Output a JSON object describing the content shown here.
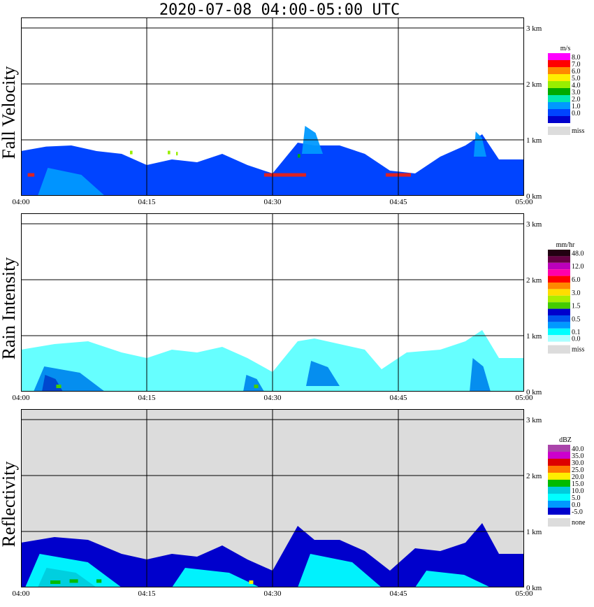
{
  "title": "2020-07-08   04:00-05:00 UTC",
  "colors": {
    "missing": "#dcdcdc",
    "grid": "#000000"
  },
  "chart_data": [
    {
      "type": "heatmap",
      "panel": "Fall Velocity",
      "xlabel": "",
      "ylabel": "Fall Velocity",
      "x_ticks": [
        "04:00",
        "04:15",
        "04:30",
        "04:45",
        "05:00"
      ],
      "y_ticks": [
        "0 km",
        "1 km",
        "2 km",
        "3 km"
      ],
      "xlim": [
        "04:00",
        "05:00"
      ],
      "ylim_km": [
        0,
        3
      ],
      "background": "#ffffff",
      "legend_unit": "m/s",
      "legend": [
        {
          "label": "8.0",
          "color": "#ff00ff"
        },
        {
          "label": "7.0",
          "color": "#ff0000"
        },
        {
          "label": "6.0",
          "color": "#ff8800"
        },
        {
          "label": "5.0",
          "color": "#ffee00"
        },
        {
          "label": "4.0",
          "color": "#99ee00"
        },
        {
          "label": "3.0",
          "color": "#00aa00"
        },
        {
          "label": "2.0",
          "color": "#00e8b0"
        },
        {
          "label": "1.0",
          "color": "#0099ff"
        },
        {
          "label": "0.0",
          "color": "#0044ff"
        }
      ],
      "legend_bottom_color": "#0000cc",
      "missing_label": "miss",
      "echo_tops": [
        {
          "t": 0,
          "h": 0.8
        },
        {
          "t": 3,
          "h": 0.88
        },
        {
          "t": 6,
          "h": 0.9
        },
        {
          "t": 9,
          "h": 0.8
        },
        {
          "t": 12,
          "h": 0.75
        },
        {
          "t": 15,
          "h": 0.55
        },
        {
          "t": 18,
          "h": 0.65
        },
        {
          "t": 21,
          "h": 0.6
        },
        {
          "t": 24,
          "h": 0.75
        },
        {
          "t": 27,
          "h": 0.55
        },
        {
          "t": 30,
          "h": 0.4
        },
        {
          "t": 33,
          "h": 0.95
        },
        {
          "t": 35,
          "h": 0.9
        },
        {
          "t": 38,
          "h": 0.9
        },
        {
          "t": 41,
          "h": 0.75
        },
        {
          "t": 44,
          "h": 0.45
        },
        {
          "t": 47,
          "h": 0.4
        },
        {
          "t": 50,
          "h": 0.7
        },
        {
          "t": 53,
          "h": 0.9
        },
        {
          "t": 55,
          "h": 1.1
        },
        {
          "t": 57,
          "h": 0.65
        },
        {
          "t": 60,
          "h": 0.65
        }
      ],
      "intense_cores": [
        {
          "t0": 2.0,
          "t1": 10.0,
          "h0": 0.0,
          "h1": 0.5,
          "color": "#0099ff"
        },
        {
          "t0": 33.5,
          "t1": 36.0,
          "h0": 0.75,
          "h1": 1.25,
          "color": "#0099ff"
        },
        {
          "t0": 54.0,
          "t1": 55.5,
          "h0": 0.7,
          "h1": 1.15,
          "color": "#0099ff"
        }
      ],
      "spots": [
        {
          "t": 29.0,
          "h": 0.38,
          "w": 5.0,
          "color": "#dd2222"
        },
        {
          "t": 43.5,
          "h": 0.38,
          "w": 3.0,
          "color": "#dd2222"
        },
        {
          "t": 0.8,
          "h": 0.38,
          "w": 0.8,
          "color": "#dd2222"
        },
        {
          "t": 13.0,
          "h": 0.78,
          "w": 0.3,
          "color": "#99ee00"
        },
        {
          "t": 17.5,
          "h": 0.78,
          "w": 0.3,
          "color": "#99ee00"
        },
        {
          "t": 18.5,
          "h": 0.76,
          "w": 0.2,
          "color": "#99ee00"
        },
        {
          "t": 33.0,
          "h": 0.72,
          "w": 0.3,
          "color": "#00aa00"
        }
      ]
    },
    {
      "type": "heatmap",
      "panel": "Rain Intensity",
      "xlabel": "",
      "ylabel": "Rain Intensity",
      "x_ticks": [
        "04:00",
        "04:15",
        "04:30",
        "04:45",
        "05:00"
      ],
      "y_ticks": [
        "0 km",
        "1 km",
        "2 km",
        "3 km"
      ],
      "xlim": [
        "04:00",
        "05:00"
      ],
      "ylim_km": [
        0,
        3
      ],
      "background": "#ffffff",
      "legend_unit": "mm/hr",
      "legend": [
        {
          "label": "48.0",
          "color": "#220011"
        },
        {
          "label": "",
          "color": "#660044"
        },
        {
          "label": "12.0",
          "color": "#bb00bb"
        },
        {
          "label": "",
          "color": "#ff00aa"
        },
        {
          "label": "6.0",
          "color": "#ff0000"
        },
        {
          "label": "",
          "color": "#ff8800"
        },
        {
          "label": "3.0",
          "color": "#ffdd00"
        },
        {
          "label": "",
          "color": "#aaee00"
        },
        {
          "label": "1.5",
          "color": "#44cc00"
        },
        {
          "label": "",
          "color": "#0000cc"
        },
        {
          "label": "0.5",
          "color": "#0055ee"
        },
        {
          "label": "",
          "color": "#0099ff"
        },
        {
          "label": "0.1",
          "color": "#00ffff"
        },
        {
          "label": "0.0",
          "color": "#aaffff"
        }
      ],
      "legend_bottom_color": "",
      "missing_label": "miss",
      "echo_tops": [
        {
          "t": 0,
          "h": 0.75
        },
        {
          "t": 4,
          "h": 0.85
        },
        {
          "t": 8,
          "h": 0.9
        },
        {
          "t": 12,
          "h": 0.7
        },
        {
          "t": 15,
          "h": 0.6
        },
        {
          "t": 18,
          "h": 0.75
        },
        {
          "t": 21,
          "h": 0.7
        },
        {
          "t": 24,
          "h": 0.8
        },
        {
          "t": 27,
          "h": 0.6
        },
        {
          "t": 30,
          "h": 0.35
        },
        {
          "t": 33,
          "h": 0.9
        },
        {
          "t": 35,
          "h": 0.95
        },
        {
          "t": 38,
          "h": 0.85
        },
        {
          "t": 41,
          "h": 0.75
        },
        {
          "t": 43,
          "h": 0.4
        },
        {
          "t": 46,
          "h": 0.7
        },
        {
          "t": 50,
          "h": 0.75
        },
        {
          "t": 53,
          "h": 0.9
        },
        {
          "t": 55,
          "h": 1.1
        },
        {
          "t": 57,
          "h": 0.6
        },
        {
          "t": 60,
          "h": 0.6
        }
      ],
      "fill_color": "#66ffff",
      "intense_cores": [
        {
          "t0": 1.5,
          "t1": 10.0,
          "h0": 0.0,
          "h1": 0.45,
          "color": "#0088ee"
        },
        {
          "t0": 2.5,
          "t1": 5.0,
          "h0": 0.0,
          "h1": 0.3,
          "color": "#0044cc"
        },
        {
          "t0": 26.5,
          "t1": 29.0,
          "h0": 0.0,
          "h1": 0.3,
          "color": "#0088ee"
        },
        {
          "t0": 34.0,
          "t1": 38.0,
          "h0": 0.1,
          "h1": 0.55,
          "color": "#0088ee"
        },
        {
          "t0": 53.5,
          "t1": 56.0,
          "h0": 0.0,
          "h1": 0.6,
          "color": "#0088ee"
        }
      ],
      "spots": [
        {
          "t": 4.2,
          "h": 0.1,
          "w": 0.6,
          "color": "#44cc00"
        },
        {
          "t": 27.8,
          "h": 0.1,
          "w": 0.5,
          "color": "#44cc00"
        }
      ]
    },
    {
      "type": "heatmap",
      "panel": "Reflectivity",
      "xlabel": "",
      "ylabel": "Reflectivity",
      "x_ticks": [
        "04:00",
        "04:15",
        "04:30",
        "04:45",
        "05:00"
      ],
      "y_ticks": [
        "0 km",
        "1 km",
        "2 km",
        "3 km"
      ],
      "xlim": [
        "04:00",
        "05:00"
      ],
      "ylim_km": [
        0,
        3
      ],
      "background": "#dcdcdc",
      "legend_unit": "dBZ",
      "legend": [
        {
          "label": "40.0",
          "color": "#aa44aa"
        },
        {
          "label": "35.0",
          "color": "#cc00cc"
        },
        {
          "label": "30.0",
          "color": "#dd0000"
        },
        {
          "label": "25.0",
          "color": "#ff7700"
        },
        {
          "label": "20.0",
          "color": "#ffee00"
        },
        {
          "label": "15.0",
          "color": "#00bb00"
        },
        {
          "label": "10.0",
          "color": "#00ccdd"
        },
        {
          "label": "5.0",
          "color": "#00ffff"
        },
        {
          "label": "0.0",
          "color": "#0099ff"
        },
        {
          "label": "-5.0",
          "color": "#0000cc"
        }
      ],
      "legend_bottom_color": "",
      "missing_label": "none",
      "echo_tops": [
        {
          "t": 0,
          "h": 0.8
        },
        {
          "t": 4,
          "h": 0.9
        },
        {
          "t": 8,
          "h": 0.85
        },
        {
          "t": 12,
          "h": 0.6
        },
        {
          "t": 15,
          "h": 0.5
        },
        {
          "t": 18,
          "h": 0.6
        },
        {
          "t": 21,
          "h": 0.55
        },
        {
          "t": 24,
          "h": 0.75
        },
        {
          "t": 27,
          "h": 0.5
        },
        {
          "t": 30,
          "h": 0.3
        },
        {
          "t": 33,
          "h": 1.1
        },
        {
          "t": 35,
          "h": 0.85
        },
        {
          "t": 38,
          "h": 0.85
        },
        {
          "t": 41,
          "h": 0.65
        },
        {
          "t": 44,
          "h": 0.3
        },
        {
          "t": 47,
          "h": 0.7
        },
        {
          "t": 50,
          "h": 0.65
        },
        {
          "t": 53,
          "h": 0.8
        },
        {
          "t": 55,
          "h": 1.15
        },
        {
          "t": 57,
          "h": 0.6
        },
        {
          "t": 60,
          "h": 0.6
        }
      ],
      "fill_color": "#0000cc",
      "intense_cores": [
        {
          "t0": 0.5,
          "t1": 12.0,
          "h0": 0.0,
          "h1": 0.6,
          "color": "#00ffff"
        },
        {
          "t0": 2.0,
          "t1": 9.0,
          "h0": 0.0,
          "h1": 0.35,
          "color": "#00ccdd"
        },
        {
          "t0": 18.0,
          "t1": 28.5,
          "h0": 0.0,
          "h1": 0.35,
          "color": "#00ffff"
        },
        {
          "t0": 33.0,
          "t1": 43.0,
          "h0": 0.0,
          "h1": 0.6,
          "color": "#00ffff"
        },
        {
          "t0": 47.0,
          "t1": 56.0,
          "h0": 0.0,
          "h1": 0.3,
          "color": "#00ffff"
        }
      ],
      "spots": [
        {
          "t": 3.5,
          "h": 0.1,
          "w": 1.2,
          "color": "#00bb00"
        },
        {
          "t": 5.8,
          "h": 0.12,
          "w": 1.0,
          "color": "#00bb00"
        },
        {
          "t": 9.0,
          "h": 0.12,
          "w": 0.6,
          "color": "#00bb00"
        },
        {
          "t": 27.2,
          "h": 0.1,
          "w": 0.5,
          "color": "#ffee00"
        }
      ]
    }
  ]
}
